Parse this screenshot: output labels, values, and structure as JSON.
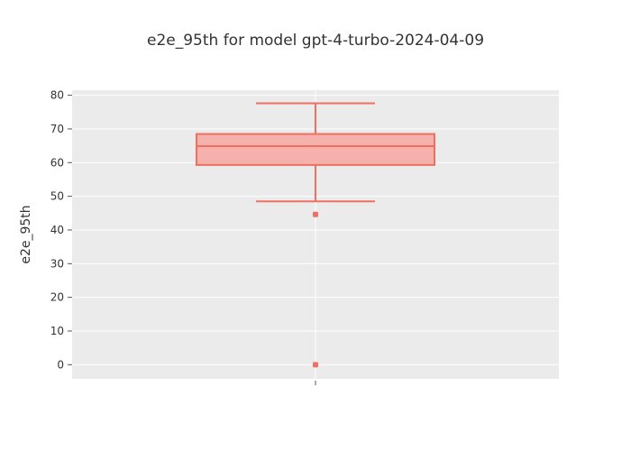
{
  "chart_data": {
    "type": "box",
    "title": "e2e_95th for model gpt-4-turbo-2024-04-09",
    "xlabel": "",
    "ylabel": "e2e_95th",
    "ylim": [
      -4.2,
      81.5
    ],
    "yticks": [
      0,
      10,
      20,
      30,
      40,
      50,
      60,
      70,
      80
    ],
    "grid": true,
    "legend": "none",
    "colors": {
      "box_line": "#ef6f61",
      "box_fill": "#f5b1ab",
      "plot_bg": "#ebebeb",
      "grid": "#ffffff"
    },
    "series": [
      {
        "whisker_low": 48.5,
        "q1": 59.3,
        "median": 64.9,
        "q3": 68.5,
        "whisker_high": 77.6,
        "outliers": [
          44.6,
          0
        ]
      }
    ]
  }
}
